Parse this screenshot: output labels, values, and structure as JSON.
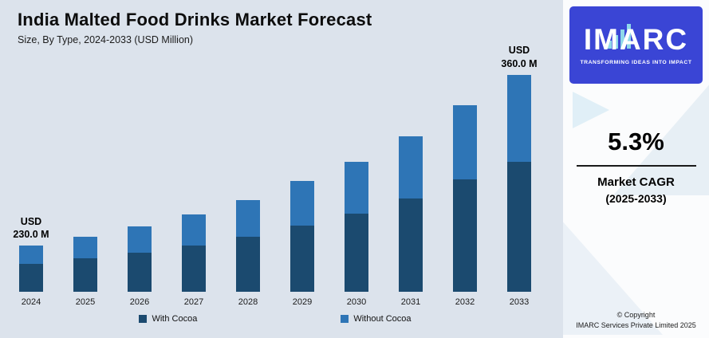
{
  "header": {
    "title": "India Malted Food Drinks Market Forecast",
    "subtitle": "Size, By Type, 2024-2033 (USD Million)"
  },
  "chart_data": {
    "type": "bar",
    "stacked": true,
    "title": "India Malted Food Drinks Market Forecast",
    "subtitle": "Size, By Type, 2024-2033 (USD Million)",
    "unit": "USD Million",
    "categories": [
      "2024",
      "2025",
      "2026",
      "2027",
      "2028",
      "2029",
      "2030",
      "2031",
      "2032",
      "2033"
    ],
    "series": [
      {
        "name": "With Cocoa",
        "color": "#1b4a6f",
        "values": [
          138.0,
          142.2,
          147.0,
          152.4,
          159.0,
          167.4,
          176.4,
          187.8,
          202.2,
          216.0
        ]
      },
      {
        "name": "Without Cocoa",
        "color": "#2e75b6",
        "values": [
          92.0,
          94.8,
          98.0,
          101.6,
          106.0,
          111.6,
          117.6,
          125.2,
          134.8,
          144.0
        ]
      }
    ],
    "totals": [
      230.0,
      237.0,
      245.0,
      254.0,
      265.0,
      279.0,
      294.0,
      313.0,
      337.0,
      360.0
    ],
    "annotations": [
      {
        "category": "2024",
        "lines": [
          "USD",
          "230.0 M"
        ]
      },
      {
        "category": "2033",
        "lines": [
          "USD",
          "360.0 M"
        ]
      }
    ],
    "ylim": [
      195,
      380
    ],
    "grid": false,
    "legend_position": "bottom",
    "xlabel": "",
    "ylabel": ""
  },
  "sidebar": {
    "logo": {
      "text": "IMARC",
      "tagline": "TRANSFORMING IDEAS INTO IMPACT"
    },
    "cagr_value": "5.3%",
    "cagr_label": "Market CAGR",
    "cagr_years": "(2025-2033)",
    "copyright_line1": "© Copyright",
    "copyright_line2": "IMARC Services Private Limited 2025"
  },
  "colors": {
    "background": "#dce3ec",
    "with_cocoa": "#1b4a6f",
    "without_cocoa": "#2e75b6",
    "logo_blue": "#3a45d5",
    "accent_teal": "#8ed8e9"
  }
}
